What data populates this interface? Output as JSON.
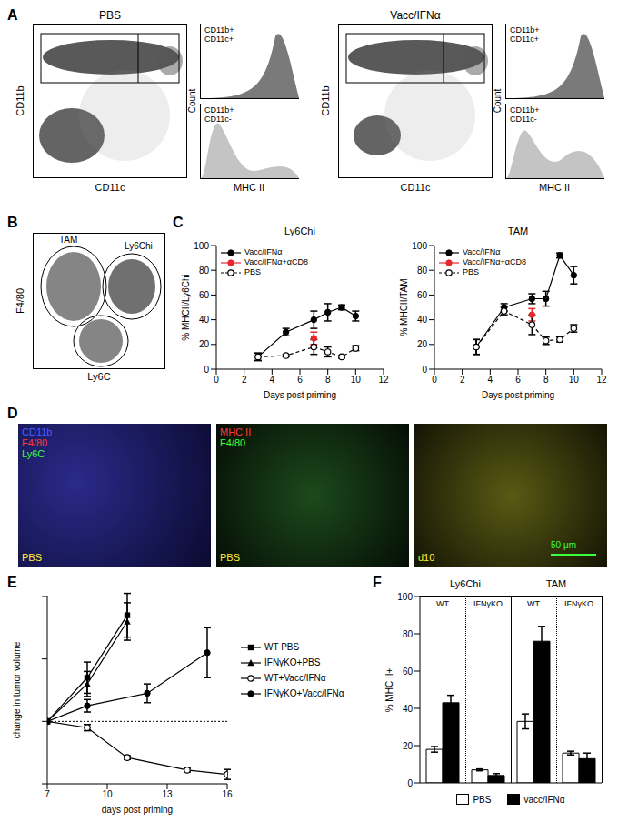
{
  "panels": {
    "A": {
      "panel_label": "A",
      "plots": [
        {
          "title": "PBS",
          "x_label": "CD11c",
          "y_label": "CD11b",
          "hist_x_label": "MHC II",
          "hist_y_label": "Count",
          "histograms": [
            {
              "label": [
                "CD11b+",
                "CD11c+"
              ],
              "color": "#7a7a7a"
            },
            {
              "label": [
                "CD11b+",
                "CD11c-"
              ],
              "color": "#c4c4c4"
            }
          ]
        },
        {
          "title": "Vacc/IFNα",
          "x_label": "CD11c",
          "y_label": "CD11b",
          "hist_x_label": "MHC II",
          "hist_y_label": "Count",
          "histograms": [
            {
              "label": [
                "CD11b+",
                "CD11c+"
              ],
              "color": "#7a7a7a"
            },
            {
              "label": [
                "CD11b+",
                "CD11c-"
              ],
              "color": "#c4c4c4"
            }
          ]
        }
      ]
    },
    "B": {
      "panel_label": "B",
      "x_label": "Ly6C",
      "y_label": "F4/80",
      "gates": [
        "TAM",
        "Ly6Chi"
      ]
    },
    "D": {
      "panel_label": "D",
      "images": [
        {
          "labels": [
            {
              "text": "CD11b",
              "color": "#4a5cff"
            },
            {
              "text": "F4/80",
              "color": "#ff3a3a"
            },
            {
              "text": "Ly6C",
              "color": "#3aff3a"
            }
          ],
          "tag": "PBS"
        },
        {
          "labels": [
            {
              "text": "MHC II",
              "color": "#ff3a3a"
            },
            {
              "text": "F4/80",
              "color": "#3aff3a"
            }
          ],
          "tag": "PBS"
        },
        {
          "labels": [],
          "tag": "d10",
          "scale_bar": "50 μm"
        }
      ]
    }
  },
  "chart_data": [
    {
      "type": "line",
      "panel_label": "C",
      "title": "Ly6Chi",
      "x_label": "Days post priming",
      "y_label": "% MHCII/Ly6Chi",
      "xlim": [
        0,
        12
      ],
      "xticks": [
        0,
        2,
        4,
        6,
        8,
        10,
        12
      ],
      "ylim": [
        0,
        100
      ],
      "yticks": [
        0,
        20,
        40,
        60,
        80,
        100
      ],
      "legend": "upper left",
      "series": [
        {
          "name": "Vacc/IFNα",
          "color": "#000000",
          "marker": "filled_circle",
          "line_style": "solid",
          "x": [
            3,
            5,
            7,
            8,
            9,
            10
          ],
          "values": [
            10,
            30,
            40,
            46,
            50,
            43
          ],
          "errors": [
            3,
            3,
            7,
            7,
            2,
            4
          ]
        },
        {
          "name": "Vacc/IFNα+αCD8",
          "color": "#e8282b",
          "marker": "filled_circle",
          "line_style": "solid",
          "x": [
            7
          ],
          "values": [
            25
          ],
          "errors": [
            5
          ]
        },
        {
          "name": "PBS",
          "color": "#000000",
          "marker": "open_circle",
          "line_style": "dashed",
          "x": [
            3,
            5,
            7,
            8,
            9,
            10
          ],
          "values": [
            10,
            11,
            18,
            14,
            10,
            17
          ],
          "errors": [
            3,
            1,
            6,
            4,
            1,
            2
          ]
        }
      ]
    },
    {
      "type": "line",
      "title": "TAM",
      "x_label": "Days post priming",
      "y_label": "% MHCII/TAM",
      "xlim": [
        0,
        12
      ],
      "xticks": [
        0,
        2,
        4,
        6,
        8,
        10,
        12
      ],
      "ylim": [
        0,
        100
      ],
      "yticks": [
        0,
        20,
        40,
        60,
        80,
        100
      ],
      "legend": "upper left",
      "series": [
        {
          "name": "Vacc/IFNα",
          "color": "#000000",
          "marker": "filled_circle",
          "line_style": "solid",
          "x": [
            3,
            5,
            7,
            8,
            9,
            10
          ],
          "values": [
            18,
            50,
            57,
            57,
            92,
            76
          ],
          "errors": [
            6,
            3,
            4,
            6,
            2,
            7
          ]
        },
        {
          "name": "Vacc/IFNα+αCD8",
          "color": "#e8282b",
          "marker": "filled_circle",
          "line_style": "solid",
          "x": [
            7
          ],
          "values": [
            44
          ],
          "errors": [
            5
          ]
        },
        {
          "name": "PBS",
          "color": "#000000",
          "marker": "open_circle",
          "line_style": "dashed",
          "x": [
            3,
            5,
            7,
            8,
            9,
            10
          ],
          "values": [
            18,
            47,
            36,
            23,
            24,
            33
          ],
          "errors": [
            6,
            3,
            8,
            3,
            2,
            3
          ]
        }
      ]
    },
    {
      "type": "line",
      "panel_label": "E",
      "x_label": "days post priming",
      "y_label": "change in tumor volume",
      "xlim": [
        7,
        16
      ],
      "xticks": [
        7,
        10,
        13,
        16
      ],
      "ylim": [
        0,
        3
      ],
      "yticks": [
        0,
        1,
        2,
        3
      ],
      "tick_labels": "x",
      "reference_line": 1,
      "legend": "right",
      "series": [
        {
          "name": "WT PBS",
          "color": "#000000",
          "marker": "filled_square",
          "line_style": "solid",
          "x": [
            7,
            9,
            11
          ],
          "values": [
            1,
            1.7,
            2.7
          ],
          "errors": [
            0,
            0.25,
            0.35
          ]
        },
        {
          "name": "IFNγKO+PBS",
          "color": "#000000",
          "marker": "filled_triangle",
          "line_style": "solid",
          "x": [
            7,
            9,
            11
          ],
          "values": [
            1,
            1.6,
            2.6
          ],
          "errors": [
            0,
            0.2,
            0.3
          ]
        },
        {
          "name": "WT+Vacc/IFNα",
          "color": "#000000",
          "marker": "open_circle",
          "line_style": "solid",
          "x": [
            7,
            9,
            11,
            14,
            16
          ],
          "values": [
            1,
            0.9,
            0.42,
            0.22,
            0.15
          ],
          "errors": [
            0,
            0.05,
            0.03,
            0.03,
            0.08
          ]
        },
        {
          "name": "IFNγKO+Vacc/IFNα",
          "color": "#000000",
          "marker": "filled_circle",
          "line_style": "solid",
          "x": [
            7,
            9,
            12,
            15
          ],
          "values": [
            1,
            1.25,
            1.45,
            2.1
          ],
          "errors": [
            0,
            0.1,
            0.15,
            0.4
          ]
        }
      ]
    },
    {
      "type": "bar",
      "panel_label": "F",
      "y_label": "% MHC II+",
      "group_labels": [
        "Ly6Chi",
        "TAM"
      ],
      "categories": [
        "WT",
        "IFNγKO",
        "WT",
        "IFNγKO"
      ],
      "ylim": [
        0,
        100
      ],
      "yticks": [
        0,
        20,
        40,
        60,
        80,
        100
      ],
      "legend": "bottom",
      "series": [
        {
          "name": "PBS",
          "color": "#ffffff",
          "values": [
            18,
            7,
            33,
            16
          ],
          "errors": [
            1.5,
            0.5,
            4,
            1
          ]
        },
        {
          "name": "vacc/IFNα",
          "color": "#000000",
          "values": [
            43,
            4,
            76,
            13
          ],
          "errors": [
            4,
            1,
            8,
            3
          ]
        }
      ]
    }
  ]
}
